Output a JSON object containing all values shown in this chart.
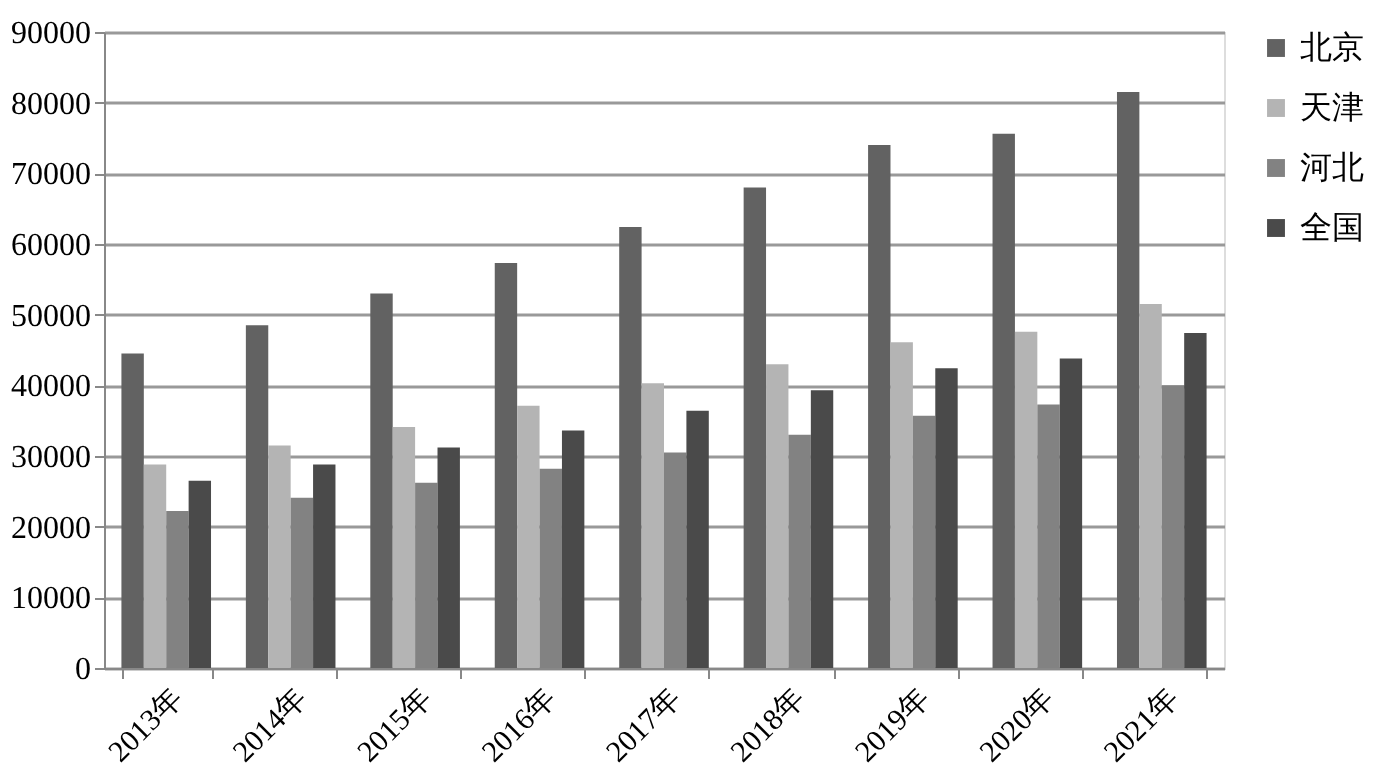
{
  "chart_data": {
    "type": "bar",
    "categories": [
      "2013年",
      "2014年",
      "2015年",
      "2016年",
      "2017年",
      "2018年",
      "2019年",
      "2020年",
      "2021年"
    ],
    "series": [
      {
        "name": "北京",
        "color": "#626262",
        "values": [
          44500,
          48500,
          53000,
          57300,
          62400,
          68000,
          74000,
          75600,
          81500
        ]
      },
      {
        "name": "天津",
        "color": "#b4b4b4",
        "values": [
          28800,
          31500,
          34100,
          37100,
          40300,
          43000,
          46100,
          47600,
          51500
        ]
      },
      {
        "name": "河北",
        "color": "#828282",
        "values": [
          22200,
          24100,
          26200,
          28200,
          30500,
          33000,
          35700,
          37300,
          40000
        ]
      },
      {
        "name": "全国",
        "color": "#4a4a4a",
        "values": [
          26500,
          28800,
          31200,
          33600,
          36400,
          39300,
          42400,
          43800,
          47400
        ]
      }
    ],
    "ylim": [
      0,
      90000
    ],
    "yticks": [
      0,
      10000,
      20000,
      30000,
      40000,
      50000,
      60000,
      70000,
      80000,
      90000
    ],
    "grid": "y",
    "legend": "right"
  }
}
